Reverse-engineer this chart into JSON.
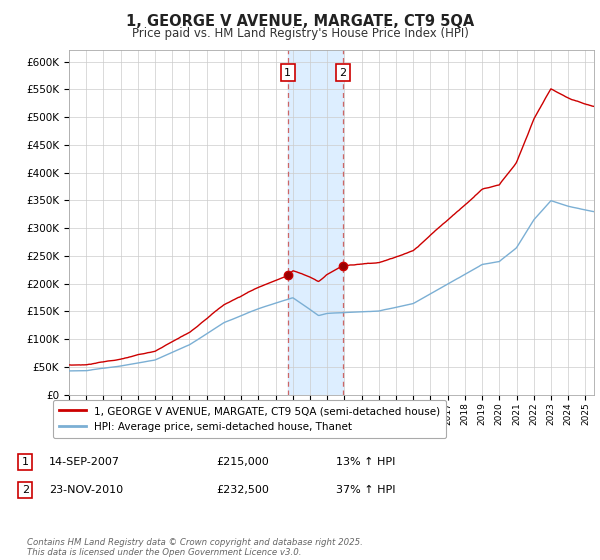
{
  "title": "1, GEORGE V AVENUE, MARGATE, CT9 5QA",
  "subtitle": "Price paid vs. HM Land Registry's House Price Index (HPI)",
  "ylim": [
    0,
    620000
  ],
  "yticks": [
    0,
    50000,
    100000,
    150000,
    200000,
    250000,
    300000,
    350000,
    400000,
    450000,
    500000,
    550000,
    600000
  ],
  "ytick_labels": [
    "£0",
    "£50K",
    "£100K",
    "£150K",
    "£200K",
    "£250K",
    "£300K",
    "£350K",
    "£400K",
    "£450K",
    "£500K",
    "£550K",
    "£600K"
  ],
  "sale1_date": "14-SEP-2007",
  "sale1_price": 215000,
  "sale1_price_str": "£215,000",
  "sale1_hpi": "13% ↑ HPI",
  "sale1_x": 2007.71,
  "sale2_date": "23-NOV-2010",
  "sale2_price": 232500,
  "sale2_price_str": "£232,500",
  "sale2_hpi": "37% ↑ HPI",
  "sale2_x": 2010.9,
  "line1_color": "#cc0000",
  "line2_color": "#7bafd4",
  "shade_color": "#ddeeff",
  "legend1_label": "1, GEORGE V AVENUE, MARGATE, CT9 5QA (semi-detached house)",
  "legend2_label": "HPI: Average price, semi-detached house, Thanet",
  "footer": "Contains HM Land Registry data © Crown copyright and database right 2025.\nThis data is licensed under the Open Government Licence v3.0.",
  "background_color": "#ffffff"
}
